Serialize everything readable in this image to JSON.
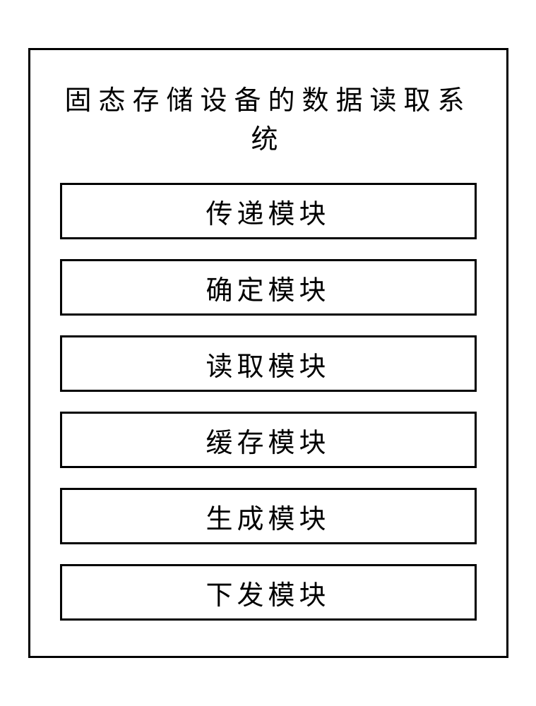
{
  "diagram": {
    "type": "block-diagram",
    "title": "固态存储设备的数据读取系统",
    "modules": [
      {
        "label": "传递模块"
      },
      {
        "label": "确定模块"
      },
      {
        "label": "读取模块"
      },
      {
        "label": "缓存模块"
      },
      {
        "label": "生成模块"
      },
      {
        "label": "下发模块"
      }
    ],
    "styling": {
      "background_color": "#ffffff",
      "border_color": "#000000",
      "border_width": 3,
      "text_color": "#000000",
      "font_family": "KaiTi",
      "title_fontsize": 38,
      "title_letter_spacing": 10,
      "module_fontsize": 38,
      "module_letter_spacing": 6,
      "container_width": 680,
      "module_width": 590,
      "module_height": 80,
      "gap": 28
    }
  }
}
